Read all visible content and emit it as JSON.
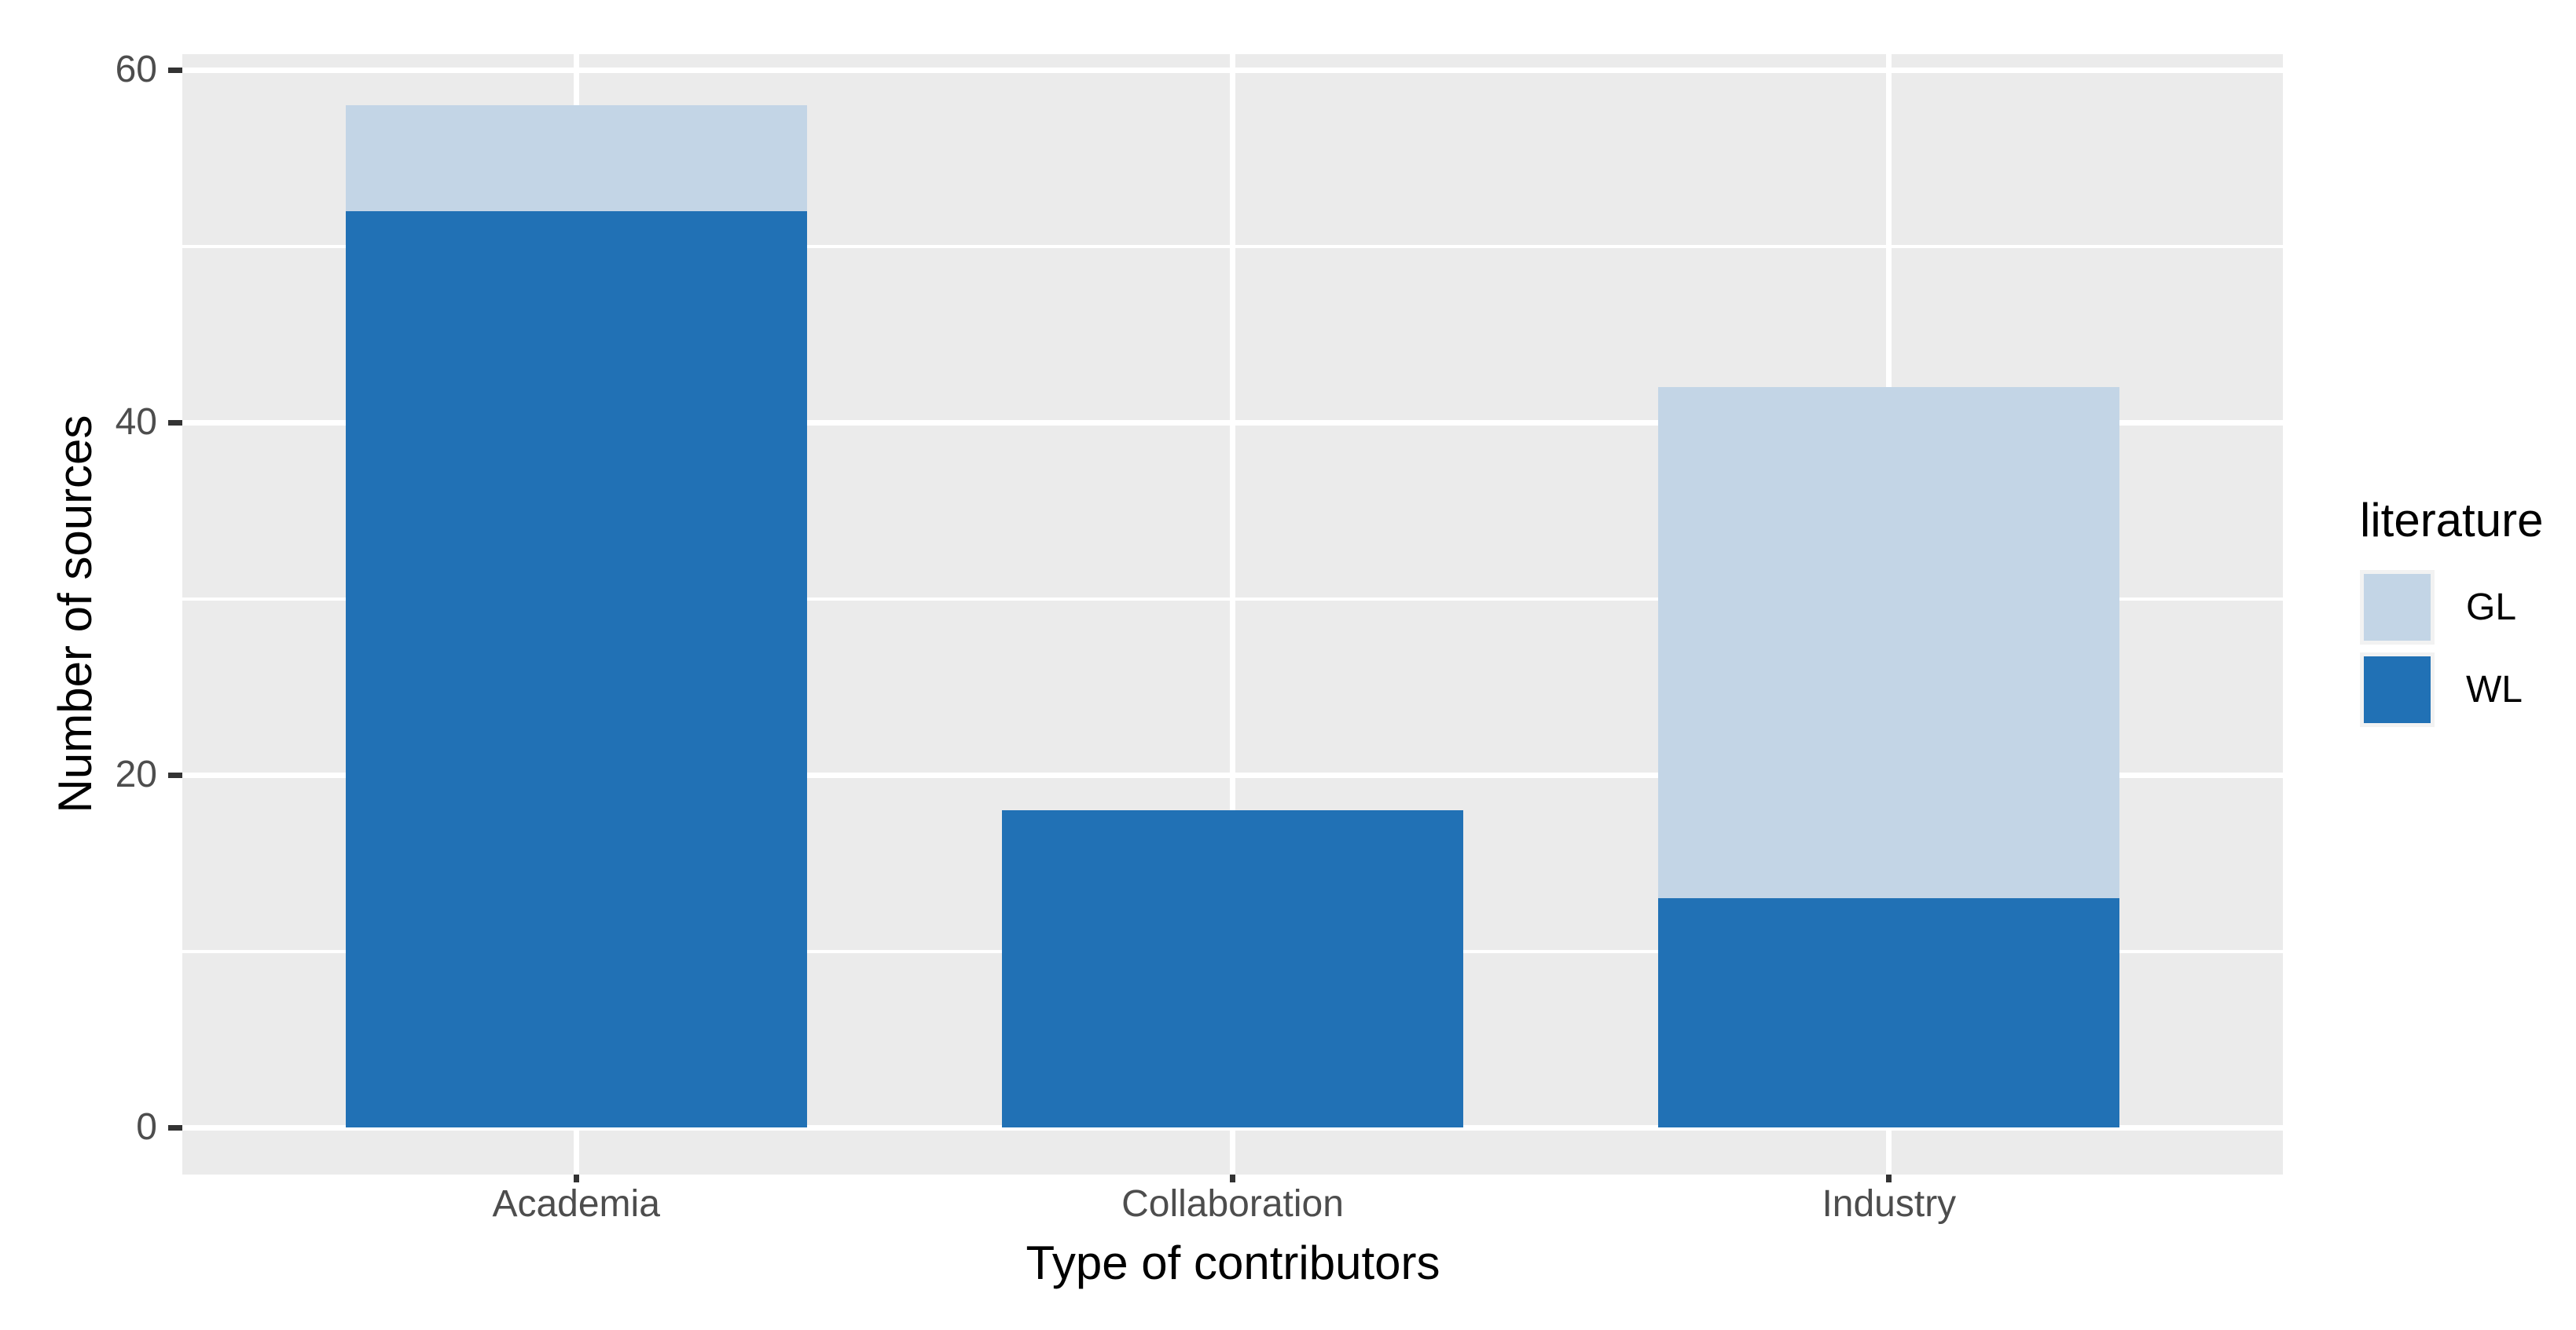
{
  "figure": {
    "background": "#FFFFFF"
  },
  "chart_data": {
    "type": "bar",
    "stacked": true,
    "orientation": "vertical",
    "title": "",
    "xlabel": "Type of contributors",
    "ylabel": "Number of sources",
    "categories": [
      "Academia",
      "Collaboration",
      "Industry"
    ],
    "series": [
      {
        "name": "WL",
        "color": "#2171B5",
        "values": [
          52,
          18,
          13
        ]
      },
      {
        "name": "GL",
        "color": "#C3D5E6",
        "values": [
          6,
          0,
          29
        ]
      }
    ],
    "totals": [
      58,
      18,
      42
    ],
    "ylim": [
      0,
      60
    ],
    "y_major_ticks": [
      0,
      20,
      40,
      60
    ],
    "y_minor_gridlines": [
      10,
      30,
      50
    ],
    "grid": "white major and minor horizontal lines, white vertical lines at category centers, grid on",
    "legend": {
      "title": "literature",
      "position": "right",
      "entries": [
        "GL",
        "WL"
      ]
    },
    "colors": {
      "panel_background": "#EBEBEB",
      "gridline": "#FFFFFF",
      "tick_mark": "#333333",
      "axis_text": "#4D4D4D",
      "title_text": "#000000",
      "legend_key_background": "#F2F2F2"
    }
  }
}
